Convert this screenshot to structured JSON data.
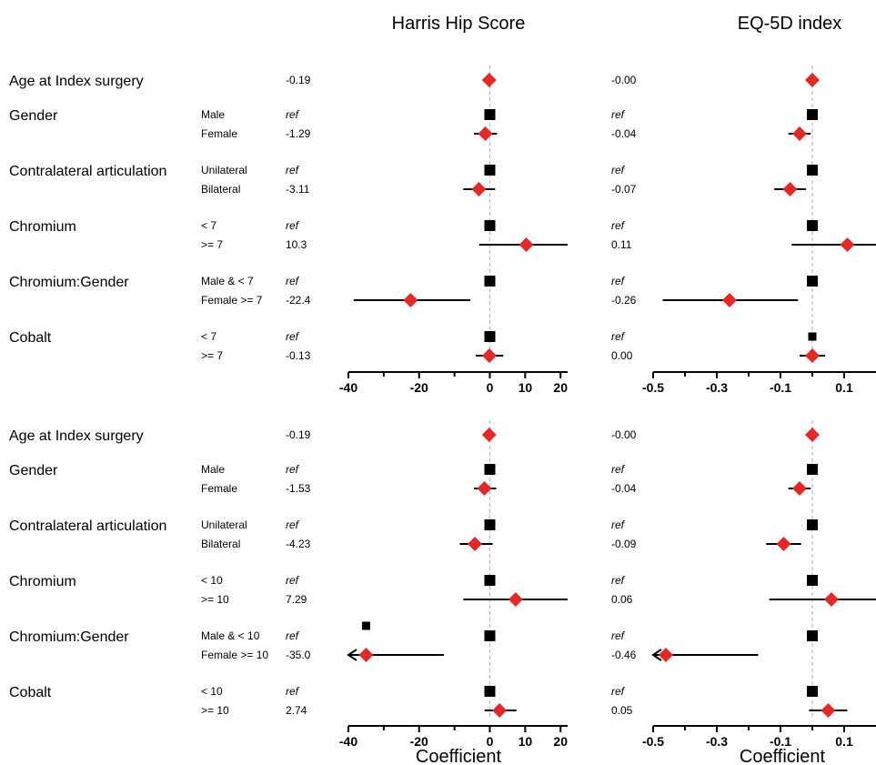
{
  "chart_data": {
    "type": "forest",
    "colors": {
      "estimate": "#e02a2a",
      "reference": "#000000",
      "zero_line": "#b9b9b9"
    },
    "panel_titles": [
      "Harris Hip Score",
      "EQ-5D index"
    ],
    "xlabel": "Coefficient",
    "x_axes": [
      {
        "name": "Harris Hip Score",
        "xlim": [
          -40,
          22
        ],
        "ticks": [
          -40,
          -20,
          0,
          10,
          20
        ],
        "tick_labels": [
          "-40",
          "-20",
          "0",
          "10",
          "20"
        ]
      },
      {
        "name": "EQ-5D index",
        "xlim": [
          -0.5,
          0.2
        ],
        "ticks": [
          -0.5,
          -0.3,
          -0.1,
          0.1
        ],
        "tick_labels": [
          "-0.5",
          "-0.3",
          "-0.1",
          "0.1"
        ]
      }
    ],
    "blocks": [
      {
        "rows": [
          {
            "variable": "Age at Index surgery",
            "level": "",
            "hhs": {
              "label": "-0.19",
              "est": -0.19,
              "lo": null,
              "hi": null,
              "ref": false
            },
            "eq": {
              "label": "-0.00",
              "est": 0.0,
              "lo": null,
              "hi": null,
              "ref": false
            }
          },
          {
            "variable": "Gender",
            "level": "Male",
            "hhs": {
              "label": "ref",
              "est": 0,
              "ref": true
            },
            "eq": {
              "label": "ref",
              "est": 0,
              "ref": true
            }
          },
          {
            "variable": "",
            "level": "Female",
            "hhs": {
              "label": "-1.29",
              "est": -1.29,
              "lo": -4.5,
              "hi": 2.0,
              "ref": false
            },
            "eq": {
              "label": "-0.04",
              "est": -0.04,
              "lo": -0.075,
              "hi": -0.005,
              "ref": false
            }
          },
          {
            "variable": "Contralateral articulation",
            "level": "Unilateral",
            "hhs": {
              "label": "ref",
              "est": 0,
              "ref": true
            },
            "eq": {
              "label": "ref",
              "est": 0,
              "ref": true
            }
          },
          {
            "variable": "",
            "level": "Bilateral",
            "hhs": {
              "label": "-3.11",
              "est": -3.11,
              "lo": -7.5,
              "hi": 1.5,
              "ref": false
            },
            "eq": {
              "label": "-0.07",
              "est": -0.07,
              "lo": -0.12,
              "hi": -0.02,
              "ref": false
            }
          },
          {
            "variable": "Chromium",
            "level": "< 7",
            "hhs": {
              "label": "ref",
              "est": 0,
              "ref": true
            },
            "eq": {
              "label": "ref",
              "est": 0,
              "ref": true
            }
          },
          {
            "variable": "",
            "level": ">= 7",
            "hhs": {
              "label": "10.3",
              "est": 10.3,
              "lo": -3.0,
              "hi": 22,
              "ref": false
            },
            "eq": {
              "label": "0.11",
              "est": 0.11,
              "lo": -0.065,
              "hi": 0.2,
              "ref": false
            }
          },
          {
            "variable": "Chromium:Gender",
            "level": "Male & < 7",
            "hhs": {
              "label": "ref",
              "est": 0,
              "ref": true
            },
            "eq": {
              "label": "ref",
              "est": 0,
              "ref": true
            }
          },
          {
            "variable": "",
            "level": "Female >= 7",
            "hhs": {
              "label": "-22.4",
              "est": -22.4,
              "lo": -38.5,
              "hi": -5.5,
              "ref": false
            },
            "eq": {
              "label": "-0.26",
              "est": -0.26,
              "lo": -0.47,
              "hi": -0.045,
              "ref": false
            }
          },
          {
            "variable": "Cobalt",
            "level": "< 7",
            "hhs": {
              "label": "ref",
              "est": 0,
              "ref": true
            },
            "eq": {
              "label": "ref",
              "est": 0,
              "ref": true,
              "small": true
            }
          },
          {
            "variable": "",
            "level": ">= 7",
            "hhs": {
              "label": "-0.13",
              "est": -0.13,
              "lo": -4.0,
              "hi": 3.8,
              "ref": false
            },
            "eq": {
              "label": "0.00",
              "est": 0.0,
              "lo": -0.04,
              "hi": 0.04,
              "ref": false
            }
          }
        ]
      },
      {
        "rows": [
          {
            "variable": "Age at Index surgery",
            "level": "",
            "hhs": {
              "label": "-0.19",
              "est": -0.19,
              "lo": null,
              "hi": null,
              "ref": false
            },
            "eq": {
              "label": "-0.00",
              "est": 0.0,
              "lo": null,
              "hi": null,
              "ref": false
            }
          },
          {
            "variable": "Gender",
            "level": "Male",
            "hhs": {
              "label": "ref",
              "est": 0,
              "ref": true
            },
            "eq": {
              "label": "ref",
              "est": 0,
              "ref": true
            }
          },
          {
            "variable": "",
            "level": "Female",
            "hhs": {
              "label": "-1.53",
              "est": -1.53,
              "lo": -4.5,
              "hi": 1.8,
              "ref": false
            },
            "eq": {
              "label": "-0.04",
              "est": -0.04,
              "lo": -0.075,
              "hi": -0.005,
              "ref": false
            }
          },
          {
            "variable": "Contralateral articulation",
            "level": "Unilateral",
            "hhs": {
              "label": "ref",
              "est": 0,
              "ref": true
            },
            "eq": {
              "label": "ref",
              "est": 0,
              "ref": true
            }
          },
          {
            "variable": "",
            "level": "Bilateral",
            "hhs": {
              "label": "-4.23",
              "est": -4.23,
              "lo": -8.5,
              "hi": 0.8,
              "ref": false
            },
            "eq": {
              "label": "-0.09",
              "est": -0.09,
              "lo": -0.145,
              "hi": -0.035,
              "ref": false
            }
          },
          {
            "variable": "Chromium",
            "level": "< 10",
            "hhs": {
              "label": "ref",
              "est": 0,
              "ref": true
            },
            "eq": {
              "label": "ref",
              "est": 0,
              "ref": true
            }
          },
          {
            "variable": "",
            "level": ">= 10",
            "hhs": {
              "label": "7.29",
              "est": 7.29,
              "lo": -7.5,
              "hi": 22,
              "ref": false
            },
            "eq": {
              "label": "0.06",
              "est": 0.06,
              "lo": -0.135,
              "hi": 0.2,
              "ref": false
            }
          },
          {
            "variable": "Chromium:Gender",
            "level": "Male & < 10",
            "hhs": {
              "label": "ref",
              "est": 0,
              "ref": true,
              "extra_square_est": -35.0
            },
            "eq": {
              "label": "ref",
              "est": 0,
              "ref": true
            }
          },
          {
            "variable": "",
            "level": "Female >= 10",
            "hhs": {
              "label": "-35.0",
              "est": -35.0,
              "lo": -40,
              "hi": -13,
              "ref": false,
              "arrow_left": true
            },
            "eq": {
              "label": "-0.46",
              "est": -0.46,
              "lo": -0.5,
              "hi": -0.17,
              "ref": false,
              "arrow_left": true
            }
          },
          {
            "variable": "Cobalt",
            "level": "< 10",
            "hhs": {
              "label": "ref",
              "est": 0,
              "ref": true
            },
            "eq": {
              "label": "ref",
              "est": 0,
              "ref": true
            }
          },
          {
            "variable": "",
            "level": ">= 10",
            "hhs": {
              "label": "2.74",
              "est": 2.74,
              "lo": -1.5,
              "hi": 7.5,
              "ref": false
            },
            "eq": {
              "label": "0.05",
              "est": 0.05,
              "lo": -0.01,
              "hi": 0.11,
              "ref": false
            }
          }
        ]
      }
    ]
  }
}
